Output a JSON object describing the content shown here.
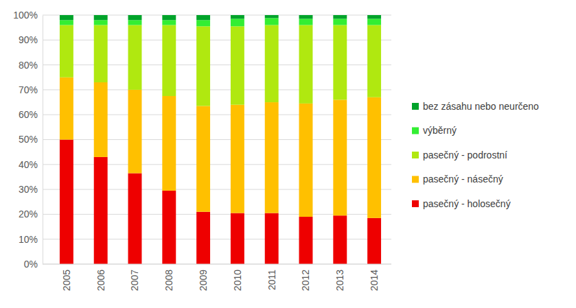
{
  "chart_data": {
    "type": "bar",
    "stacked": true,
    "grid": true,
    "legend": "right",
    "categories": [
      "2005",
      "2006",
      "2007",
      "2008",
      "2009",
      "2010",
      "2011",
      "2012",
      "2013",
      "2014"
    ],
    "ylim": [
      0,
      100
    ],
    "yticks": [
      {
        "value": 0,
        "label": "0%"
      },
      {
        "value": 10,
        "label": "10%"
      },
      {
        "value": 20,
        "label": "20%"
      },
      {
        "value": 30,
        "label": "30%"
      },
      {
        "value": 40,
        "label": "40%"
      },
      {
        "value": 50,
        "label": "50%"
      },
      {
        "value": 60,
        "label": "60%"
      },
      {
        "value": 70,
        "label": "70%"
      },
      {
        "value": 80,
        "label": "80%"
      },
      {
        "value": 90,
        "label": "90%"
      },
      {
        "value": 100,
        "label": "100%"
      }
    ],
    "series": [
      {
        "name": "pasečný - holosečný",
        "color": "#ee0000",
        "values": [
          50,
          43,
          36.5,
          29.5,
          21,
          20.5,
          20.5,
          19,
          19.5,
          18.5
        ]
      },
      {
        "name": "pasečný - násečný",
        "color": "#ffc000",
        "values": [
          25,
          30,
          33.5,
          38,
          42.5,
          43.5,
          44.5,
          45.5,
          46.5,
          48.5
        ]
      },
      {
        "name": "pasečný - podrostní",
        "color": "#b0e810",
        "values": [
          21,
          23,
          26,
          28.5,
          32,
          31.5,
          31,
          31.5,
          30,
          29
        ]
      },
      {
        "name": "výběrný",
        "color": "#33ee33",
        "values": [
          2,
          2,
          2,
          2,
          2.5,
          3,
          2.8,
          2.5,
          2.5,
          2.5
        ]
      },
      {
        "name": "bez zásahu nebo neurčeno",
        "color": "#00a32a",
        "values": [
          2,
          2,
          2,
          2,
          2,
          1.5,
          1.2,
          1.5,
          1.5,
          1.5
        ]
      }
    ]
  }
}
